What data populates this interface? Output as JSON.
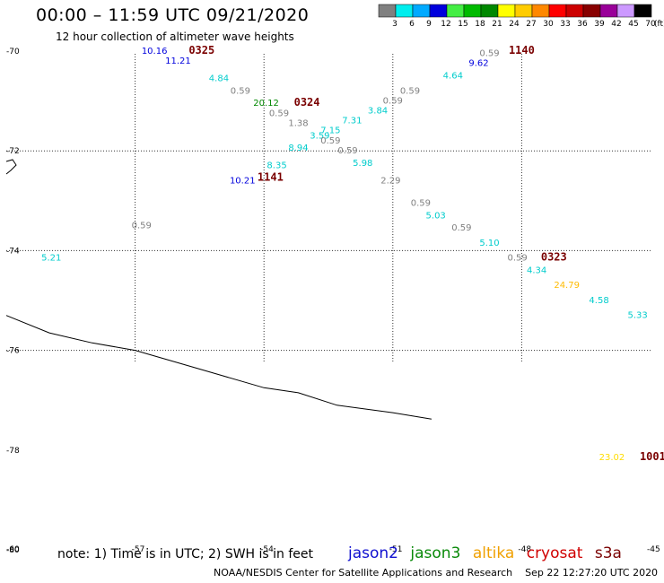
{
  "header": {
    "title": "00:00 – 11:59 UTC 09/21/2020",
    "subtitle": "12 hour collection of altimeter wave heights"
  },
  "footer": {
    "note": "note: 1) Time is in UTC; 2) SWH is in feet",
    "credit": "NOAA/NESDIS Center for Satellite Applications and Research",
    "timestamp": "Sep 22 12:27:20 UTC 2020"
  },
  "satellites": [
    {
      "name": "jason2",
      "color": "#1010d0"
    },
    {
      "name": "jason3",
      "color": "#0a8a0a"
    },
    {
      "name": "altika",
      "color": "#f0a000"
    },
    {
      "name": "cryosat",
      "color": "#d00000"
    },
    {
      "name": "s3a",
      "color": "#7a0000"
    }
  ],
  "colorbar": {
    "unit": "(ft)",
    "ticks": [
      "3",
      "6",
      "9",
      "12",
      "15",
      "18",
      "21",
      "24",
      "27",
      "30",
      "33",
      "36",
      "39",
      "42",
      "45",
      "70"
    ],
    "colors": [
      "#808080",
      "#00eeee",
      "#00aaff",
      "#0000dd",
      "#44ee44",
      "#00bb00",
      "#008800",
      "#ffff00",
      "#ffcc00",
      "#ff8800",
      "#ff0000",
      "#cc0000",
      "#880000",
      "#990099",
      "#cc99ff",
      "#000000"
    ]
  },
  "chart_data": {
    "type": "scatter",
    "title": "00:00 – 11:59 UTC 09/21/2020",
    "subtitle": "12 hour collection of altimeter wave heights",
    "x_axis": {
      "range": [
        -60,
        -45
      ],
      "ticks": [
        -60,
        -57,
        -54,
        -51,
        -48,
        -45
      ]
    },
    "y_axis": {
      "range": [
        -80,
        -70
      ],
      "ticks": [
        -70,
        -72,
        -74,
        -76,
        -78,
        -80
      ]
    },
    "grid": true,
    "grid_lon": [
      -57,
      -54,
      -51,
      -48
    ],
    "grid_lat": [
      -72,
      -74,
      -76
    ],
    "coastline": [
      [
        -60.0,
        -75.3
      ],
      [
        -59.0,
        -75.65
      ],
      [
        -58.0,
        -75.85
      ],
      [
        -57.0,
        -76.0
      ],
      [
        -56.0,
        -76.25
      ],
      [
        -55.0,
        -76.5
      ],
      [
        -54.0,
        -76.75
      ],
      [
        -53.2,
        -76.85
      ],
      [
        -52.3,
        -77.1
      ],
      [
        -51.0,
        -77.25
      ],
      [
        -50.1,
        -77.38
      ]
    ],
    "points": [
      {
        "lon": -56.55,
        "lat": -70.05,
        "v": "10.16",
        "c": "#0000dd"
      },
      {
        "lon": -56.0,
        "lat": -70.25,
        "v": "11.21",
        "c": "#0000dd"
      },
      {
        "lon": -55.05,
        "lat": -70.6,
        "v": "4.84",
        "c": "#00cccc"
      },
      {
        "lon": -54.55,
        "lat": -70.85,
        "v": "0.59",
        "c": "#808080"
      },
      {
        "lon": -53.95,
        "lat": -71.1,
        "v": "20.12",
        "c": "#008800"
      },
      {
        "lon": -53.65,
        "lat": -71.3,
        "v": "0.59",
        "c": "#808080"
      },
      {
        "lon": -53.2,
        "lat": -71.5,
        "v": "1.38",
        "c": "#808080"
      },
      {
        "lon": -52.7,
        "lat": -71.75,
        "v": "3.59",
        "c": "#00cccc"
      },
      {
        "lon": -52.45,
        "lat": -71.85,
        "v": "0.59",
        "c": "#808080"
      },
      {
        "lon": -52.05,
        "lat": -72.05,
        "v": "0.59",
        "c": "#808080"
      },
      {
        "lon": -51.7,
        "lat": -72.3,
        "v": "5.98",
        "c": "#00cccc"
      },
      {
        "lon": -51.05,
        "lat": -72.65,
        "v": "2.29",
        "c": "#808080"
      },
      {
        "lon": -50.35,
        "lat": -73.1,
        "v": "0.59",
        "c": "#808080"
      },
      {
        "lon": -50.0,
        "lat": -73.35,
        "v": "5.03",
        "c": "#00cccc"
      },
      {
        "lon": -49.4,
        "lat": -73.6,
        "v": "0.59",
        "c": "#808080"
      },
      {
        "lon": -48.75,
        "lat": -73.9,
        "v": "5.10",
        "c": "#00cccc"
      },
      {
        "lon": -48.1,
        "lat": -74.2,
        "v": "0.59",
        "c": "#808080"
      },
      {
        "lon": -47.65,
        "lat": -74.45,
        "v": "4.34",
        "c": "#00cccc"
      },
      {
        "lon": -46.95,
        "lat": -74.75,
        "v": "24.79",
        "c": "#ffbb00"
      },
      {
        "lon": -46.2,
        "lat": -75.05,
        "v": "4.58",
        "c": "#00cccc"
      },
      {
        "lon": -45.3,
        "lat": -75.35,
        "v": "5.33",
        "c": "#00cccc"
      },
      {
        "lon": -48.75,
        "lat": -70.1,
        "v": "0.59",
        "c": "#808080"
      },
      {
        "lon": -49.0,
        "lat": -70.3,
        "v": "9.62",
        "c": "#0000dd"
      },
      {
        "lon": -49.6,
        "lat": -70.55,
        "v": "4.64",
        "c": "#00cccc"
      },
      {
        "lon": -50.6,
        "lat": -70.85,
        "v": "0.59",
        "c": "#808080"
      },
      {
        "lon": -51.0,
        "lat": -71.05,
        "v": "0.59",
        "c": "#808080"
      },
      {
        "lon": -51.35,
        "lat": -71.25,
        "v": "3.84",
        "c": "#00cccc"
      },
      {
        "lon": -51.95,
        "lat": -71.45,
        "v": "7.31",
        "c": "#00cccc"
      },
      {
        "lon": -52.45,
        "lat": -71.65,
        "v": "7.15",
        "c": "#00cccc"
      },
      {
        "lon": -53.2,
        "lat": -72.0,
        "v": "8.94",
        "c": "#00cccc"
      },
      {
        "lon": -53.7,
        "lat": -72.35,
        "v": "8.35",
        "c": "#00cccc"
      },
      {
        "lon": -54.5,
        "lat": -72.65,
        "v": "10.21",
        "c": "#0000dd"
      },
      {
        "lon": -56.85,
        "lat": -73.55,
        "v": "0.59",
        "c": "#808080"
      },
      {
        "lon": -58.95,
        "lat": -74.2,
        "v": "5.21",
        "c": "#00cccc"
      },
      {
        "lon": -45.9,
        "lat": -78.2,
        "v": "23.02",
        "c": "#ffdd00"
      }
    ],
    "time_labels": [
      {
        "lon": -55.45,
        "lat": -70.05,
        "t": "0325"
      },
      {
        "lon": -53.0,
        "lat": -71.1,
        "t": "0324"
      },
      {
        "lon": -53.85,
        "lat": -72.6,
        "t": "1141"
      },
      {
        "lon": -48.0,
        "lat": -70.05,
        "t": "1140"
      },
      {
        "lon": -47.25,
        "lat": -74.2,
        "t": "0323"
      },
      {
        "lon": -44.95,
        "lat": -78.2,
        "t": "1001"
      }
    ]
  }
}
